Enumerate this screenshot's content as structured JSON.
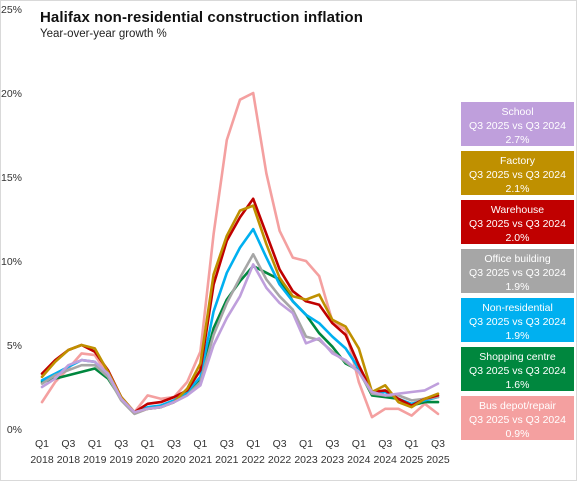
{
  "title": "Halifax non-residential construction inflation",
  "subtitle": "Year-over-year  growth %",
  "chart_data": {
    "type": "line",
    "ylim": [
      0,
      25
    ],
    "yticks": [
      "0%",
      "5%",
      "10%",
      "15%",
      "20%",
      "25%"
    ],
    "x": [
      "Q1 2018",
      "Q2 2018",
      "Q3 2018",
      "Q4 2018",
      "Q1 2019",
      "Q2 2019",
      "Q3 2019",
      "Q4 2019",
      "Q1 2020",
      "Q2 2020",
      "Q3 2020",
      "Q4 2020",
      "Q1 2021",
      "Q2 2021",
      "Q3 2021",
      "Q4 2021",
      "Q1 2022",
      "Q2 2022",
      "Q3 2022",
      "Q4 2022",
      "Q1 2023",
      "Q2 2023",
      "Q3 2023",
      "Q4 2023",
      "Q1 2024",
      "Q2 2024",
      "Q3 2024",
      "Q4 2024",
      "Q1 2025",
      "Q2 2025",
      "Q3 2025"
    ],
    "xtick_labels": [
      {
        "q": "Q1",
        "y": "2018"
      },
      {
        "q": "Q3",
        "y": "2018"
      },
      {
        "q": "Q1",
        "y": "2019"
      },
      {
        "q": "Q3",
        "y": "2019"
      },
      {
        "q": "Q1",
        "y": "2020"
      },
      {
        "q": "Q3",
        "y": "2020"
      },
      {
        "q": "Q1",
        "y": "2021"
      },
      {
        "q": "Q3",
        "y": "2021"
      },
      {
        "q": "Q1",
        "y": "2022"
      },
      {
        "q": "Q3",
        "y": "2022"
      },
      {
        "q": "Q1",
        "y": "2023"
      },
      {
        "q": "Q3",
        "y": "2023"
      },
      {
        "q": "Q1",
        "y": "2024"
      },
      {
        "q": "Q3",
        "y": "2024"
      },
      {
        "q": "Q1",
        "y": "2025"
      },
      {
        "q": "Q3",
        "y": "2025"
      }
    ],
    "grid": false,
    "legend_placement": "right",
    "series": [
      {
        "name": "School",
        "line1": "School",
        "line2": "Q3 2025 vs Q3 2024",
        "line3": "2.7%",
        "color": "#bf9fdc",
        "values": [
          2.5,
          3.0,
          3.8,
          4.1,
          4.0,
          3.3,
          1.8,
          1.0,
          1.2,
          1.3,
          1.6,
          2.0,
          2.6,
          5.0,
          6.6,
          7.9,
          9.8,
          8.4,
          7.5,
          6.9,
          5.1,
          5.4,
          4.5,
          4.1,
          3.4,
          2.2,
          2.0,
          2.1,
          2.2,
          2.3,
          2.7
        ]
      },
      {
        "name": "Factory",
        "line1": "Factory",
        "line2": "Q3 2025 vs Q3 2024",
        "line3": "2.1%",
        "color": "#bf9000",
        "values": [
          3.1,
          4.0,
          4.7,
          5.0,
          4.8,
          3.4,
          1.9,
          1.0,
          1.2,
          1.3,
          1.6,
          2.4,
          3.9,
          9.2,
          11.5,
          13.0,
          13.3,
          11.0,
          9.0,
          7.9,
          7.7,
          8.0,
          6.5,
          6.1,
          4.8,
          2.2,
          2.6,
          1.6,
          1.3,
          1.8,
          2.1
        ]
      },
      {
        "name": "Warehouse",
        "line1": "Warehouse",
        "line2": "Q3 2025 vs Q3 2024",
        "line3": "2.0%",
        "color": "#c00000",
        "values": [
          3.3,
          4.1,
          4.7,
          5.0,
          4.6,
          3.5,
          1.9,
          1.0,
          1.5,
          1.6,
          1.9,
          2.3,
          3.5,
          8.6,
          11.2,
          12.6,
          13.7,
          11.6,
          9.5,
          8.2,
          7.6,
          7.4,
          6.3,
          5.6,
          3.8,
          2.2,
          2.3,
          1.8,
          1.4,
          1.8,
          2.0
        ]
      },
      {
        "name": "Office building",
        "line1": "Office building",
        "line2": "Q3 2025 vs Q3 2024",
        "line3": "1.9%",
        "color": "#a6a6a6",
        "values": [
          2.7,
          3.2,
          3.5,
          3.8,
          3.8,
          3.1,
          1.7,
          0.9,
          1.2,
          1.3,
          1.6,
          2.0,
          2.8,
          5.6,
          7.5,
          9.0,
          10.4,
          8.9,
          7.9,
          7.1,
          5.5,
          5.3,
          4.6,
          4.0,
          3.4,
          2.1,
          2.0,
          2.0,
          1.7,
          1.8,
          1.9
        ]
      },
      {
        "name": "Non-residential",
        "line1": "Non-residential",
        "line2": "Q3 2025 vs Q3 2024",
        "line3": "1.9%",
        "color": "#00b0f0",
        "values": [
          2.9,
          3.3,
          3.7,
          4.1,
          4.0,
          3.2,
          1.8,
          1.0,
          1.3,
          1.4,
          1.7,
          2.2,
          3.1,
          7.0,
          9.3,
          10.8,
          11.9,
          10.2,
          8.6,
          7.6,
          6.8,
          6.3,
          5.5,
          4.8,
          3.6,
          2.1,
          2.2,
          1.8,
          1.5,
          1.7,
          1.9
        ]
      },
      {
        "name": "Shopping centre",
        "line1": "Shopping centre",
        "line2": "Q3 2025 vs Q3 2024",
        "line3": "1.6%",
        "color": "#00873e",
        "values": [
          2.8,
          3.0,
          3.2,
          3.4,
          3.6,
          3.0,
          1.8,
          1.0,
          1.2,
          1.3,
          1.6,
          2.1,
          3.0,
          6.0,
          7.7,
          8.8,
          9.7,
          9.3,
          8.9,
          7.6,
          6.8,
          5.7,
          4.9,
          3.9,
          3.5,
          2.0,
          1.9,
          1.8,
          1.4,
          1.6,
          1.6
        ]
      },
      {
        "name": "Bus depot/repair",
        "line1": "Bus depot/repair",
        "line2": "Q3 2025 vs Q3 2024",
        "line3": "0.9%",
        "color": "#f4a0a0",
        "values": [
          1.6,
          2.8,
          3.6,
          4.5,
          4.4,
          3.2,
          1.9,
          1.0,
          2.0,
          1.8,
          1.9,
          2.8,
          4.6,
          11.6,
          17.2,
          19.6,
          20.0,
          15.2,
          11.8,
          10.2,
          10.0,
          9.1,
          6.4,
          5.9,
          2.8,
          0.7,
          1.2,
          1.2,
          0.8,
          1.5,
          0.9
        ]
      }
    ]
  }
}
